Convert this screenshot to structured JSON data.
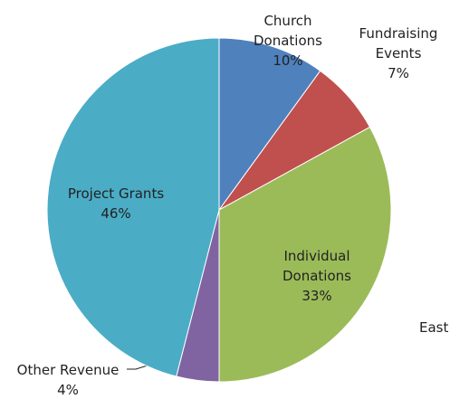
{
  "chart_data": {
    "type": "pie",
    "categories": [
      "Church Donations",
      "Fundraising Events",
      "Individual Donations",
      "Other Revenue",
      "Project Grants"
    ],
    "values": [
      10,
      7,
      33,
      4,
      46
    ],
    "value_labels": [
      "10%",
      "7%",
      "33%",
      "4%",
      "46%"
    ],
    "colors": [
      "#4f81bd",
      "#c0504d",
      "#9bbb59",
      "#8064a2",
      "#4bacc6"
    ],
    "annotations": [
      "East"
    ]
  }
}
